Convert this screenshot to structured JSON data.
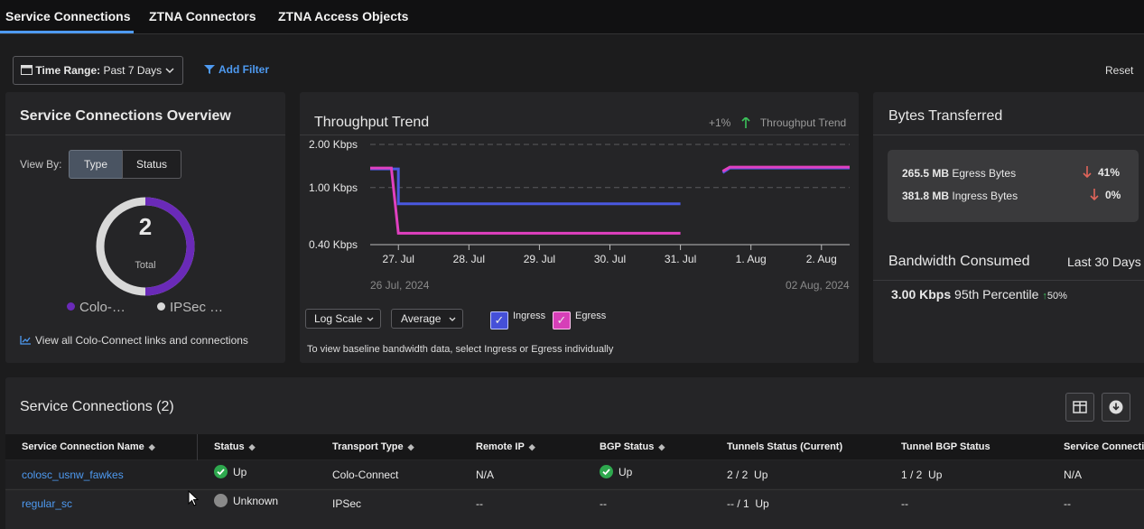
{
  "tabs": [
    {
      "label": "Service Connections"
    },
    {
      "label": "ZTNA Connectors"
    },
    {
      "label": "ZTNA Access Objects"
    }
  ],
  "toolbar": {
    "time_range_label": "Time Range:",
    "time_range_value": "Past 7 Days",
    "add_filter": "Add Filter",
    "reset": "Reset"
  },
  "overview": {
    "title": "Service Connections Overview",
    "view_by_label": "View By:",
    "view_by_options": [
      "Type",
      "Status"
    ],
    "view_by_selected": "Type",
    "total_value": "2",
    "total_label": "Total",
    "legend": [
      {
        "label": "Colo-…",
        "color": "#6a2ab8"
      },
      {
        "label": "IPSec …",
        "color": "#d8d8d8"
      }
    ],
    "donut_fraction_colo": 0.5,
    "view_all_link": "View all Colo-Connect links and connections"
  },
  "throughput": {
    "title": "Throughput Trend",
    "change": "+1%",
    "change_label": "Throughput Trend",
    "start_date": "26 Jul, 2024",
    "end_date": "02 Aug, 2024",
    "scale_select": "Log Scale",
    "agg_select": "Average",
    "ingress_label": "Ingress",
    "egress_label": "Egress",
    "note": "To view baseline bandwidth data, select Ingress or Egress individually"
  },
  "chart_data": {
    "type": "line",
    "title": "Throughput Trend",
    "yscale": "log",
    "ylim": [
      0.4,
      2.0
    ],
    "yticks": [
      "2.00 Kbps",
      "1.00 Kbps",
      "0.40 Kbps"
    ],
    "ytick_values": [
      2.0,
      1.0,
      0.4
    ],
    "xticks": [
      "27. Jul",
      "28. Jul",
      "29. Jul",
      "30. Jul",
      "31. Jul",
      "1. Aug",
      "2. Aug"
    ],
    "xlim": [
      26.6,
      33.4
    ],
    "xtick_values": [
      27,
      28,
      29,
      30,
      31,
      32,
      33
    ],
    "series": [
      {
        "name": "Ingress",
        "color": "#4a58e0",
        "segments": [
          [
            [
              26.6,
              1.35
            ],
            [
              27.0,
              1.35
            ],
            [
              27.0,
              0.77
            ],
            [
              31.0,
              0.77
            ]
          ],
          [
            [
              31.6,
              1.27
            ],
            [
              31.7,
              1.37
            ],
            [
              33.4,
              1.37
            ]
          ]
        ]
      },
      {
        "name": "Egress",
        "color": "#e040c0",
        "segments": [
          [
            [
              26.6,
              1.37
            ],
            [
              26.9,
              1.37
            ],
            [
              27.0,
              0.48
            ],
            [
              31.0,
              0.48
            ]
          ],
          [
            [
              31.6,
              1.3
            ],
            [
              31.7,
              1.39
            ],
            [
              33.4,
              1.39
            ]
          ]
        ]
      }
    ]
  },
  "bytes": {
    "title": "Bytes Transferred",
    "rows": [
      {
        "value": "265.5 MB",
        "label": "Egress Bytes",
        "change": "41%"
      },
      {
        "value": "381.8 MB",
        "label": "Ingress Bytes",
        "change": "0%"
      }
    ],
    "bandwidth_title": "Bandwidth Consumed",
    "bandwidth_period": "Last 30 Days",
    "bandwidth_value": "3.00 Kbps",
    "bandwidth_label": "95th Percentile",
    "bandwidth_change": "50%"
  },
  "table": {
    "title": "Service Connections (2)",
    "columns": [
      "Service Connection Name",
      "Status",
      "Transport Type",
      "Remote IP",
      "BGP Status",
      "Tunnels Status (Current)",
      "Tunnel BGP Status",
      "Service Connectio"
    ],
    "rows": [
      {
        "name": "colosc_usnw_fawkes",
        "status": "Up",
        "transport": "Colo-Connect",
        "remote_ip": "N/A",
        "bgp": "Up",
        "tunnels_count": "2 / 2",
        "tunnels_state": "Up",
        "tunnel_bgp_count": "1 / 2",
        "tunnel_bgp_state": "Up",
        "last": "N/A"
      },
      {
        "name": "regular_sc",
        "status": "Unknown",
        "transport": "IPSec",
        "remote_ip": "--",
        "bgp": "--",
        "tunnels_count": "-- / 1",
        "tunnels_state": "Up",
        "tunnel_bgp_count": "--",
        "tunnel_bgp_state": "",
        "last": "--"
      }
    ]
  },
  "colors": {
    "accent": "#4e9af1",
    "success": "#2ea84e",
    "unknown": "#8a8a8a",
    "down": "#e0645a",
    "up": "#3cc25a"
  }
}
